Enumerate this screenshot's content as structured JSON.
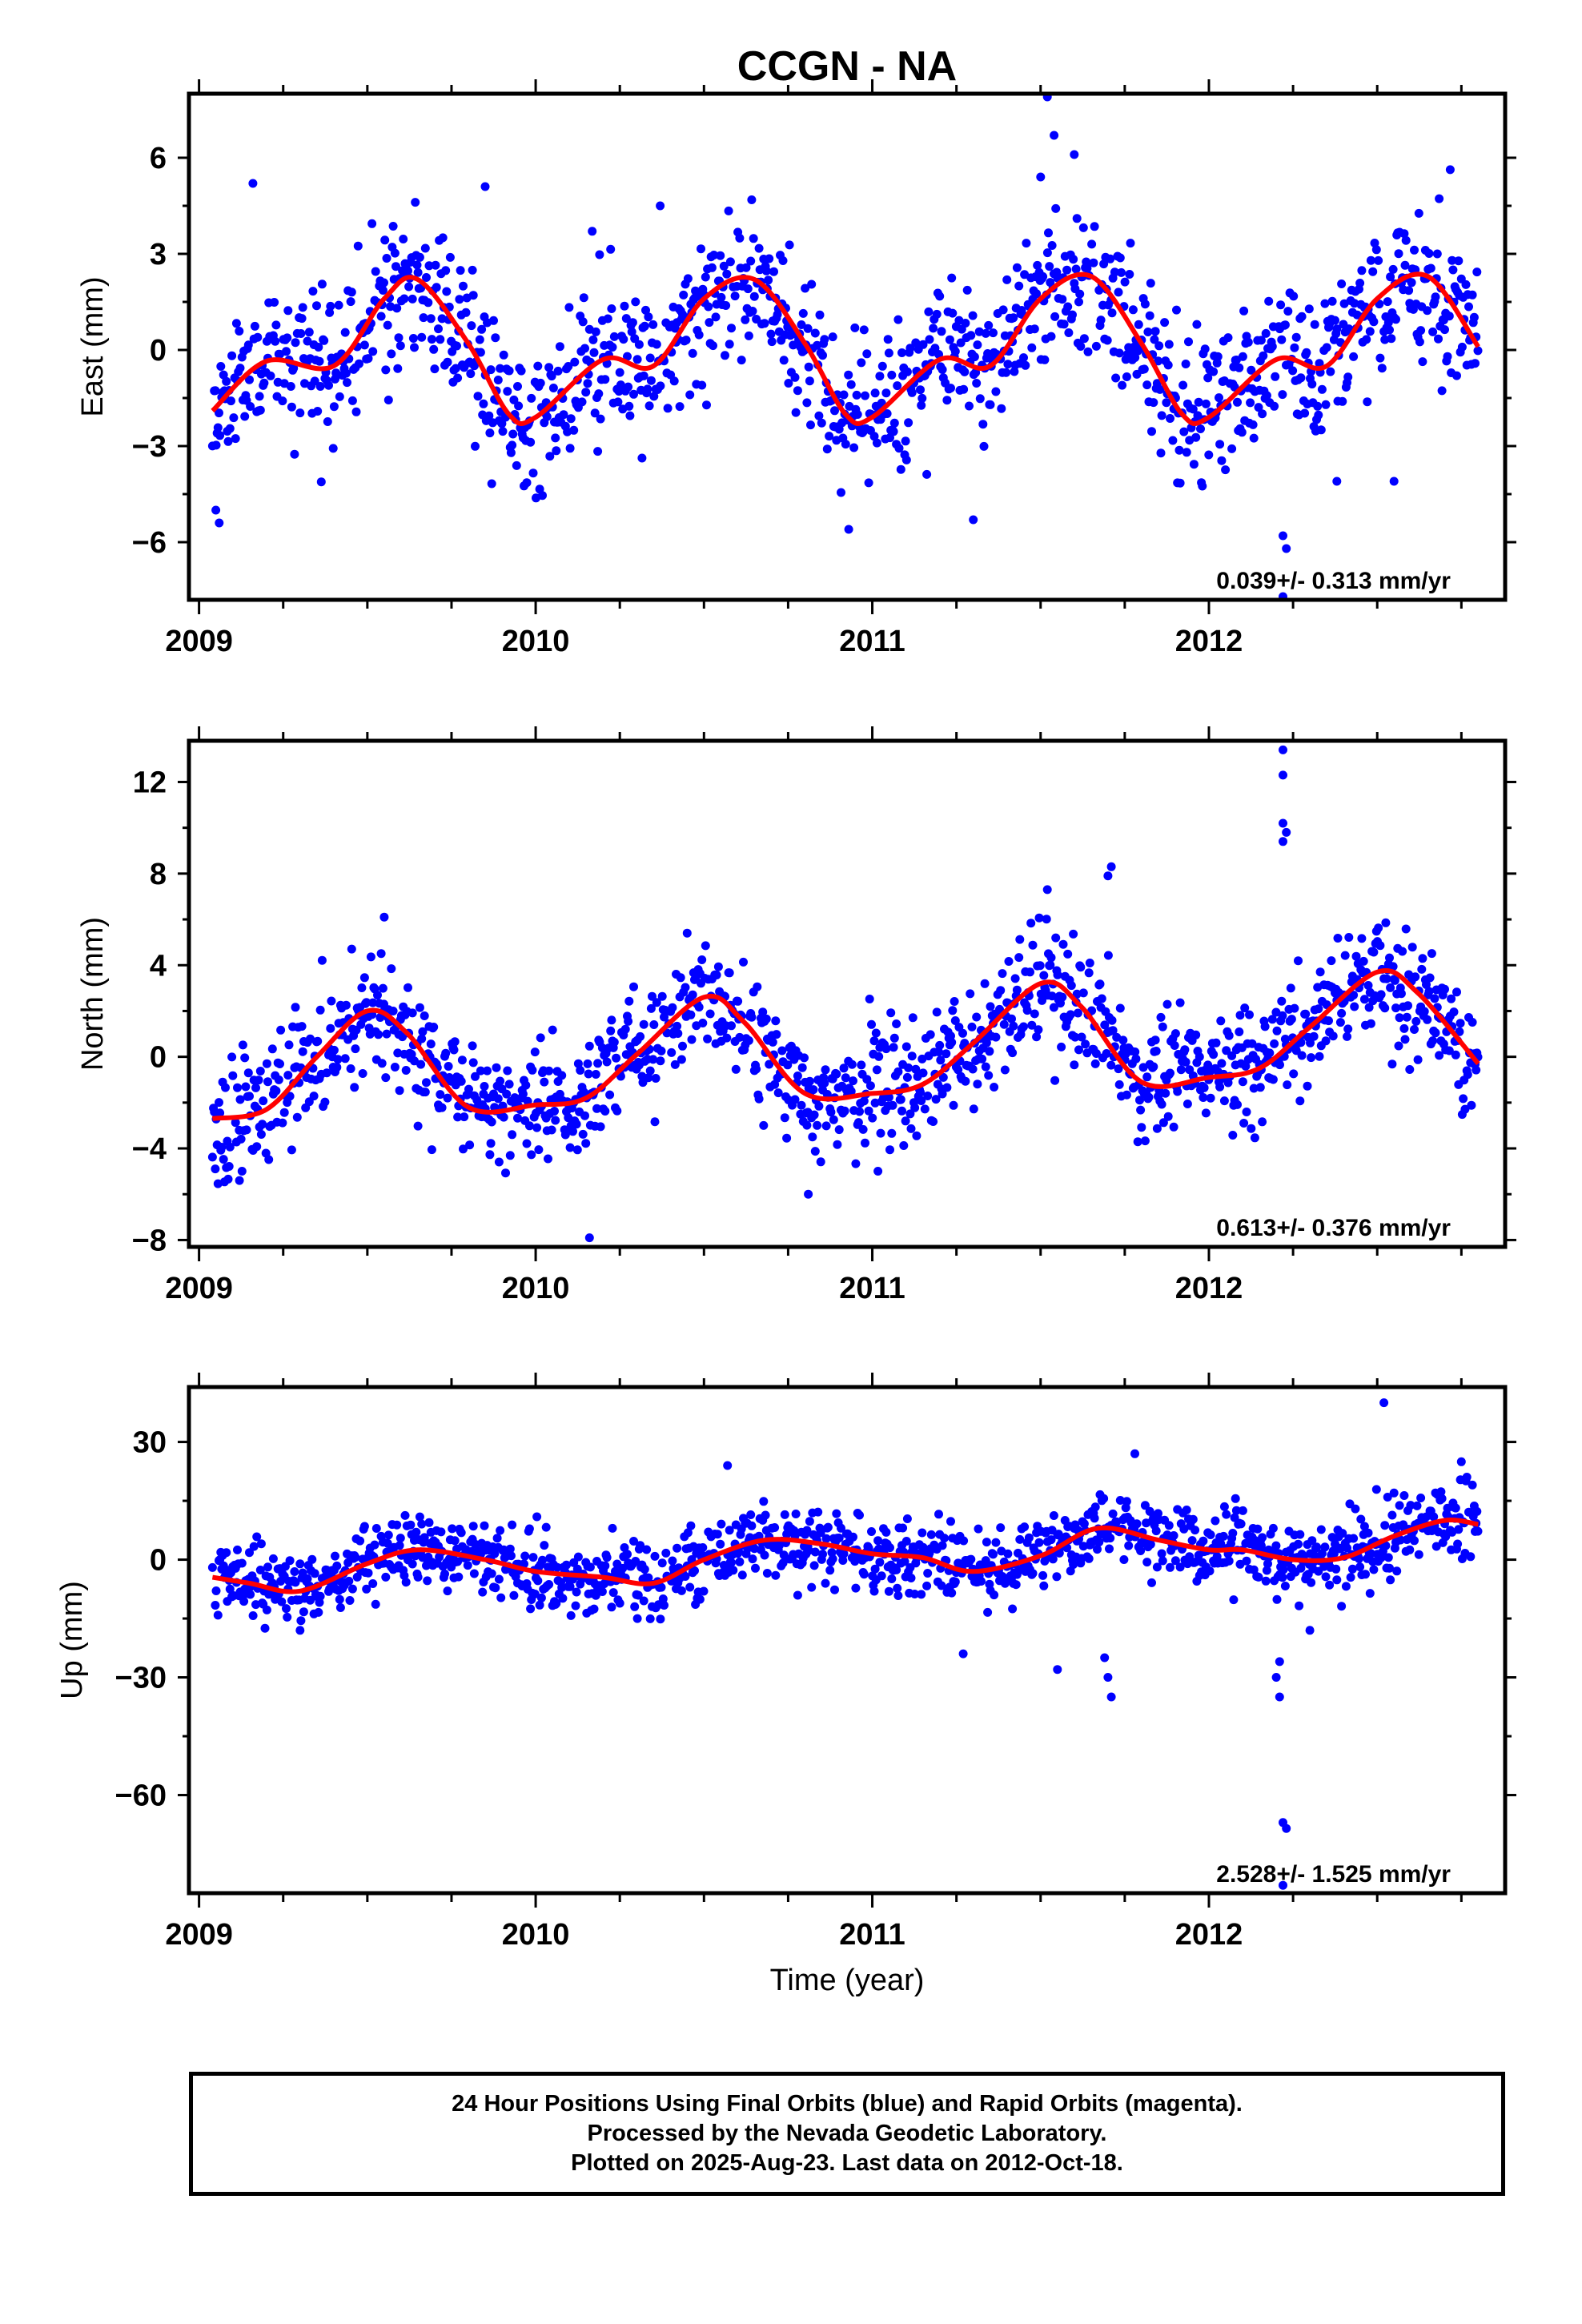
{
  "page": {
    "title": "CCGN - NA"
  },
  "footer": {
    "line1": "24 Hour Positions Using Final Orbits (blue) and Rapid Orbits (magenta).",
    "line2": "Processed by the Nevada Geodetic Laboratory.",
    "line3": "Plotted on 2025-Aug-23. Last data on 2012-Oct-18."
  },
  "chart_data": [
    {
      "type": "scatter",
      "title": "CCGN - NA",
      "xlabel": "",
      "ylabel": "East (mm)",
      "xlim": [
        2008.97,
        2012.88
      ],
      "ylim": [
        -7.8,
        8.0
      ],
      "yticks": [
        -6,
        -3,
        0,
        3,
        6
      ],
      "ytick_labels": [
        "−6",
        "−3",
        "0",
        "3",
        "6"
      ],
      "xticks": [
        2009,
        2010,
        2011,
        2012
      ],
      "xtick_labels": [
        "2009",
        "2010",
        "2011",
        "2012"
      ],
      "rate_text": "0.039+/- 0.313 mm/yr",
      "colors": {
        "points": "#0000ff",
        "fit": "#ff0000"
      },
      "trend": {
        "x": [
          2009.04,
          2009.2,
          2009.4,
          2009.55,
          2009.65,
          2009.8,
          2009.92,
          2010.0,
          2010.2,
          2010.35,
          2010.5,
          2010.65,
          2010.8,
          2010.92,
          2011.0,
          2011.2,
          2011.35,
          2011.5,
          2011.65,
          2011.8,
          2011.92,
          2012.0,
          2012.2,
          2012.35,
          2012.5,
          2012.65,
          2012.8
        ],
        "y": [
          -1.9,
          -0.35,
          -0.5,
          1.6,
          2.2,
          0.2,
          -2.0,
          -2.1,
          -0.3,
          -0.5,
          1.6,
          2.2,
          0.2,
          -2.0,
          -2.1,
          -0.3,
          -0.5,
          1.6,
          2.3,
          0.2,
          -2.0,
          -2.1,
          -0.3,
          -0.5,
          1.6,
          2.3,
          0.1
        ]
      },
      "amp": 1.6,
      "phase_ref": 2009.65,
      "noise": 1.15,
      "outliers": [
        [
          2009.16,
          5.2
        ],
        [
          2009.05,
          -5.0
        ],
        [
          2009.06,
          -5.4
        ],
        [
          2009.85,
          5.1
        ],
        [
          2010.37,
          4.5
        ],
        [
          2011.52,
          7.9
        ],
        [
          2011.54,
          6.7
        ],
        [
          2011.6,
          6.1
        ],
        [
          2011.5,
          5.4
        ],
        [
          2011.3,
          -5.3
        ],
        [
          2010.93,
          -5.6
        ],
        [
          2012.22,
          -7.7
        ],
        [
          2012.23,
          -6.2
        ],
        [
          2012.22,
          -5.8
        ],
        [
          2012.55,
          -4.1
        ],
        [
          2012.38,
          -4.1
        ]
      ]
    },
    {
      "type": "scatter",
      "xlabel": "",
      "ylabel": "North (mm)",
      "xlim": [
        2008.97,
        2012.88
      ],
      "ylim": [
        -8.3,
        13.8
      ],
      "yticks": [
        -8,
        -4,
        0,
        4,
        8,
        12
      ],
      "ytick_labels": [
        "−8",
        "−4",
        "0",
        "4",
        "8",
        "12"
      ],
      "xticks": [
        2009,
        2010,
        2011,
        2012
      ],
      "xtick_labels": [
        "2009",
        "2010",
        "2011",
        "2012"
      ],
      "rate_text": "0.613+/- 0.376 mm/yr",
      "colors": {
        "points": "#0000ff",
        "fit": "#ff0000"
      },
      "trend": {
        "x": [
          2009.04,
          2009.2,
          2009.35,
          2009.5,
          2009.62,
          2009.8,
          2010.0,
          2010.15,
          2010.3,
          2010.5,
          2010.62,
          2010.8,
          2011.0,
          2011.15,
          2011.3,
          2011.5,
          2011.62,
          2011.8,
          2012.0,
          2012.15,
          2012.3,
          2012.5,
          2012.62,
          2012.8
        ],
        "y": [
          -2.7,
          -2.3,
          0.0,
          2.0,
          1.0,
          -2.2,
          -2.1,
          -1.8,
          0.1,
          2.6,
          1.5,
          -1.6,
          -1.6,
          -1.2,
          0.6,
          3.2,
          2.2,
          -1.1,
          -0.9,
          -0.5,
          1.3,
          3.7,
          2.8,
          -0.3
        ]
      },
      "amp": 2.3,
      "phase_ref": 2009.5,
      "noise": 1.3,
      "outliers": [
        [
          2012.22,
          13.4
        ],
        [
          2012.22,
          12.3
        ],
        [
          2012.22,
          10.2
        ],
        [
          2012.23,
          9.8
        ],
        [
          2012.22,
          9.4
        ],
        [
          2011.71,
          8.3
        ],
        [
          2011.7,
          7.9
        ],
        [
          2010.16,
          -7.9
        ],
        [
          2010.81,
          -6.0
        ],
        [
          2009.12,
          -5.4
        ],
        [
          2011.52,
          7.3
        ],
        [
          2009.55,
          6.1
        ],
        [
          2010.45,
          5.4
        ]
      ]
    },
    {
      "type": "scatter",
      "xlabel": "Time (year)",
      "ylabel": "Up (mm)",
      "xlim": [
        2008.97,
        2012.88
      ],
      "ylim": [
        -85,
        44
      ],
      "yticks": [
        -60,
        -30,
        0,
        30
      ],
      "ytick_labels": [
        "−60",
        "−30",
        "0",
        "30"
      ],
      "xticks": [
        2009,
        2010,
        2011,
        2012
      ],
      "xtick_labels": [
        "2009",
        "2010",
        "2011",
        "2012"
      ],
      "rate_text": "2.528+/- 1.525 mm/yr",
      "colors": {
        "points": "#0000ff",
        "fit": "#ff0000"
      },
      "trend": {
        "x": [
          2009.04,
          2009.15,
          2009.3,
          2009.5,
          2009.65,
          2009.85,
          2010.0,
          2010.2,
          2010.35,
          2010.5,
          2010.68,
          2010.85,
          2011.0,
          2011.15,
          2011.3,
          2011.5,
          2011.67,
          2011.85,
          2012.0,
          2012.1,
          2012.25,
          2012.4,
          2012.55,
          2012.7,
          2012.8
        ],
        "y": [
          -4.5,
          -6.0,
          -8.0,
          -1.0,
          2.5,
          0.0,
          -3.0,
          -4.5,
          -6.0,
          0.0,
          5.0,
          4.0,
          1.5,
          0.5,
          -3.0,
          1.0,
          8.0,
          5.0,
          2.5,
          2.5,
          0.0,
          0.5,
          6.0,
          10.0,
          9.0
        ]
      },
      "amp": 5.0,
      "phase_ref": 2009.65,
      "noise": 4.6,
      "outliers": [
        [
          2012.52,
          40.0
        ],
        [
          2011.71,
          -35.0
        ],
        [
          2011.7,
          -30.0
        ],
        [
          2011.69,
          -25.0
        ],
        [
          2012.22,
          -67.0
        ],
        [
          2012.23,
          -68.5
        ],
        [
          2012.22,
          -83.0
        ],
        [
          2012.21,
          -35.0
        ],
        [
          2012.2,
          -30.0
        ],
        [
          2012.21,
          -26.0
        ],
        [
          2012.3,
          -18.0
        ],
        [
          2011.55,
          -28.0
        ],
        [
          2010.57,
          24.0
        ],
        [
          2011.78,
          27.0
        ],
        [
          2011.27,
          -24.0
        ],
        [
          2009.3,
          -18.0
        ]
      ]
    }
  ]
}
